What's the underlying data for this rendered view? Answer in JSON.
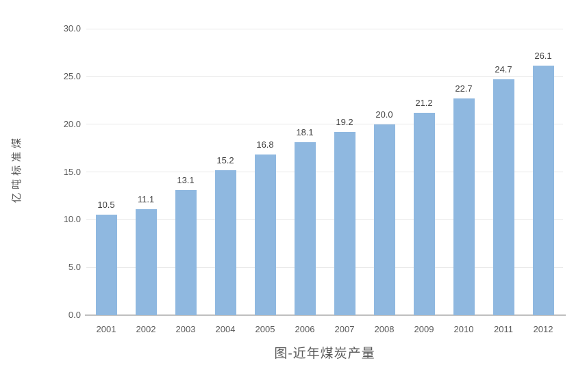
{
  "chart_data": {
    "type": "bar",
    "title": "图-近年煤炭产量",
    "xlabel": "",
    "ylabel": "亿吨标准煤",
    "categories": [
      "2001",
      "2002",
      "2003",
      "2004",
      "2005",
      "2006",
      "2007",
      "2008",
      "2009",
      "2010",
      "2011",
      "2012"
    ],
    "values": [
      10.5,
      11.1,
      13.1,
      15.2,
      16.8,
      18.1,
      19.2,
      20.0,
      21.2,
      22.7,
      24.7,
      26.1
    ],
    "value_labels": [
      "10.5",
      "11.1",
      "13.1",
      "15.2",
      "16.8",
      "18.1",
      "19.2",
      "20.0",
      "21.2",
      "22.7",
      "24.7",
      "26.1"
    ],
    "ylim": [
      0,
      30
    ],
    "yticks": [
      0,
      5,
      10,
      15,
      20,
      25,
      30
    ],
    "ytick_labels": [
      "0.0",
      "5.0",
      "10.0",
      "15.0",
      "20.0",
      "25.0",
      "30.0"
    ],
    "grid": true,
    "legend": "none",
    "colors": {
      "bar_fill": "#8FB8E0",
      "gridline": "#E8E8E8",
      "axis_line": "#BFBFBF",
      "tick_text": "#595959",
      "value_label_text": "#404040",
      "title_text": "#595959",
      "background": "#FFFFFF"
    }
  }
}
